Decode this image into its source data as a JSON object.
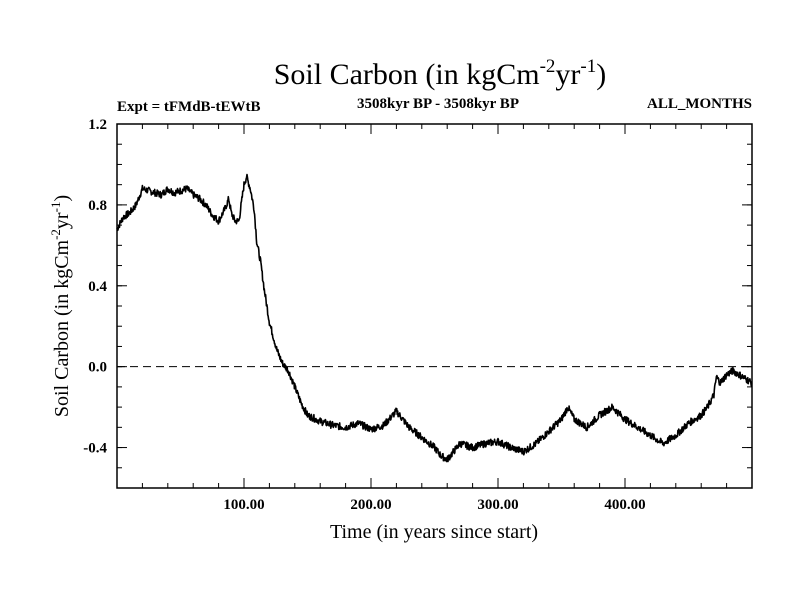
{
  "chart_data": {
    "type": "line",
    "title_main": "Soil Carbon (in kgCm",
    "title_sup1": "-2",
    "title_mid": "yr",
    "title_sup2": "-1",
    "title_end": ")",
    "experiment": "Expt = tFMdB-tEWtB",
    "period": "3508kyr BP - 3508kyr BP",
    "season": "ALL_MONTHS",
    "xlabel": "Time (in years since start)",
    "ylabel_main": "Soil Carbon (in kgCm",
    "ylabel_sup1": "-2",
    "ylabel_mid": "yr",
    "ylabel_sup2": "-1",
    "ylabel_end": ")",
    "xlim": [
      0,
      500
    ],
    "ylim": [
      -0.6,
      1.2
    ],
    "x_ticks": [
      {
        "value": 100,
        "label": "100.00"
      },
      {
        "value": 200,
        "label": "200.00"
      },
      {
        "value": 300,
        "label": "300.00"
      },
      {
        "value": 400,
        "label": "400.00"
      }
    ],
    "y_ticks": [
      {
        "value": 1.2,
        "label": "1.2"
      },
      {
        "value": 0.8,
        "label": "0.8"
      },
      {
        "value": 0.4,
        "label": "0.4"
      },
      {
        "value": 0.0,
        "label": "0.0"
      },
      {
        "value": -0.4,
        "label": "-0.4"
      }
    ],
    "reference_line": 0.0,
    "series": [
      {
        "name": "Soil Carbon",
        "x": [
          0,
          5,
          10,
          15,
          20,
          25,
          30,
          35,
          40,
          45,
          50,
          55,
          60,
          65,
          70,
          75,
          80,
          85,
          88,
          90,
          93,
          96,
          100,
          102,
          105,
          108,
          110,
          113,
          116,
          120,
          123,
          126,
          130,
          135,
          140,
          145,
          150,
          160,
          170,
          180,
          190,
          200,
          210,
          220,
          230,
          240,
          250,
          255,
          260,
          265,
          270,
          280,
          290,
          300,
          310,
          320,
          325,
          330,
          340,
          350,
          355,
          360,
          370,
          380,
          390,
          400,
          410,
          420,
          430,
          440,
          450,
          460,
          465,
          470,
          472,
          475,
          480,
          485,
          490,
          495,
          500
        ],
        "values": [
          0.68,
          0.74,
          0.76,
          0.8,
          0.88,
          0.87,
          0.86,
          0.85,
          0.88,
          0.86,
          0.87,
          0.88,
          0.85,
          0.83,
          0.8,
          0.75,
          0.72,
          0.78,
          0.83,
          0.76,
          0.72,
          0.72,
          0.9,
          0.94,
          0.88,
          0.78,
          0.62,
          0.52,
          0.38,
          0.22,
          0.15,
          0.08,
          0.02,
          -0.02,
          -0.1,
          -0.18,
          -0.24,
          -0.27,
          -0.29,
          -0.3,
          -0.28,
          -0.31,
          -0.29,
          -0.22,
          -0.3,
          -0.35,
          -0.4,
          -0.44,
          -0.46,
          -0.42,
          -0.38,
          -0.4,
          -0.38,
          -0.37,
          -0.4,
          -0.42,
          -0.4,
          -0.38,
          -0.32,
          -0.26,
          -0.2,
          -0.26,
          -0.3,
          -0.24,
          -0.2,
          -0.26,
          -0.3,
          -0.34,
          -0.38,
          -0.34,
          -0.28,
          -0.24,
          -0.2,
          -0.14,
          -0.05,
          -0.08,
          -0.04,
          -0.02,
          -0.04,
          -0.06,
          -0.08
        ]
      }
    ]
  }
}
